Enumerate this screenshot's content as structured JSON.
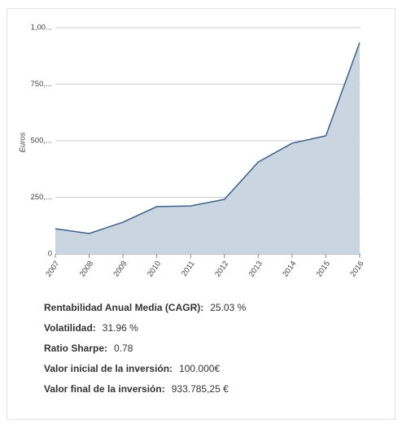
{
  "chart_data": {
    "type": "area",
    "y_label": "Euros",
    "categories": [
      "2007",
      "2008",
      "2009",
      "2010",
      "2011",
      "2012",
      "2013",
      "2014",
      "2015",
      "2016"
    ],
    "values": [
      111000,
      90000,
      140000,
      209000,
      212000,
      241000,
      406000,
      489000,
      522000,
      933785
    ],
    "color": "#3d6186",
    "fill_color": "#c9d5e0",
    "ylim": [
      0,
      1000000
    ],
    "yticks": [
      0,
      {
        "value": 250000,
        "label": "250,..."
      },
      {
        "value": 500000,
        "label": "500,..."
      },
      {
        "value": 750000,
        "label": "750,..."
      },
      {
        "value": 1000000,
        "label": "1,00..."
      }
    ],
    "grid": true
  },
  "stats": [
    {
      "label": "Rentabilidad Anual Media (CAGR):",
      "value": "25.03 %"
    },
    {
      "label": "Volatilidad:",
      "value": "31.96 %"
    },
    {
      "label": "Ratio Sharpe:",
      "value": "0.78"
    },
    {
      "label": "Valor inicial de la inversión:",
      "value": "100.000€"
    },
    {
      "label": "Valor final de la inversión:",
      "value": "933.785,25 €"
    }
  ]
}
